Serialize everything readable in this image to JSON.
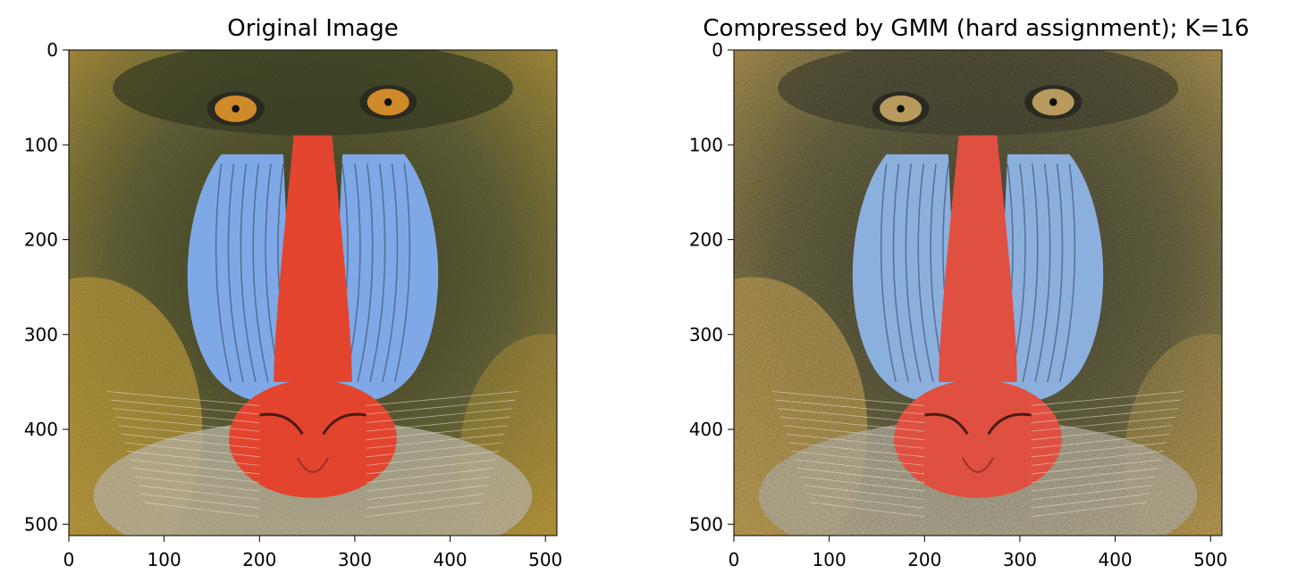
{
  "chart_data": [
    {
      "type": "image",
      "title": "Original Image",
      "xlim": [
        0,
        512
      ],
      "ylim": [
        512,
        0
      ],
      "x_ticks": [
        0,
        100,
        200,
        300,
        400,
        500
      ],
      "y_ticks": [
        0,
        100,
        200,
        300,
        400,
        500
      ],
      "style": "original",
      "image_description_colors": {
        "fur": "#6b6a3c",
        "fur_dark": "#3e4428",
        "fur_yellow": "#c9a642",
        "cheek_blue": "#7fa9e6",
        "nose_red": "#e2442e",
        "eye_orange": "#d08a2a",
        "beard_light": "#cfc8b2"
      }
    },
    {
      "type": "image",
      "title": "Compressed by GMM (hard assignment); K=16",
      "xlim": [
        0,
        512
      ],
      "ylim": [
        512,
        0
      ],
      "x_ticks": [
        0,
        100,
        200,
        300,
        400,
        500
      ],
      "y_ticks": [
        0,
        100,
        200,
        300,
        400,
        500
      ],
      "style": "compressed",
      "image_description_colors": {
        "fur": "#6e6a46",
        "fur_dark": "#4a4a36",
        "fur_yellow": "#c7a659",
        "cheek_blue": "#8cb0de",
        "nose_red": "#df5040",
        "eye_orange": "#b99a5e",
        "beard_light": "#c2bca8"
      }
    }
  ]
}
